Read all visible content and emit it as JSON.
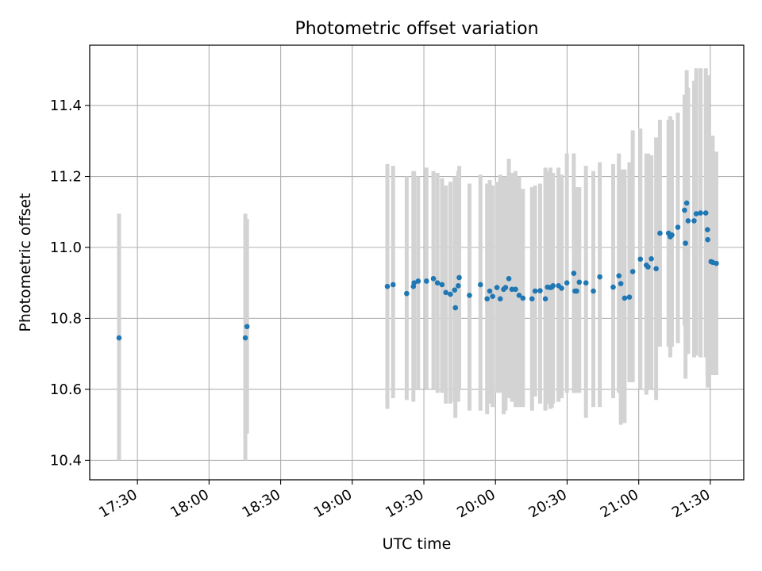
{
  "chart_data": {
    "type": "scatter",
    "title": "Photometric offset variation",
    "xlabel": "UTC time",
    "ylabel": "Photometric offset",
    "xlim": [
      "17:10",
      "21:44"
    ],
    "ylim": [
      10.345,
      11.57
    ],
    "grid": true,
    "x_ticks": [
      "17:30",
      "18:00",
      "18:30",
      "19:00",
      "19:30",
      "20:00",
      "20:30",
      "21:00",
      "21:30"
    ],
    "y_ticks": [
      10.4,
      10.6,
      10.8,
      11.0,
      11.2,
      11.4
    ],
    "y_tick_labels": [
      "10.4",
      "10.6",
      "10.8",
      "11.0",
      "11.2",
      "11.4"
    ],
    "colors": {
      "points": "#1f77b4",
      "error_bars": "#d3d3d3",
      "grid": "#b0b0b0"
    },
    "series": [
      {
        "marker": "point",
        "x": [
          "17:22:18",
          "18:15:12",
          "18:15:54",
          "19:14:42",
          "19:17:06",
          "19:22:48",
          "19:25:36",
          "19:25:54",
          "19:27:36",
          "19:31:06",
          "19:34:00",
          "19:35:42",
          "19:37:36",
          "19:39:12",
          "19:41:06",
          "19:42:54",
          "19:43:12",
          "19:44:24",
          "19:44:48",
          "19:49:06",
          "19:53:42",
          "19:56:30",
          "19:57:36",
          "19:58:48",
          "20:00:36",
          "20:02:00",
          "20:03:24",
          "20:04:12",
          "20:05:36",
          "20:06:54",
          "20:08:24",
          "20:09:54",
          "20:11:30",
          "20:15:18",
          "20:16:36",
          "20:18:42",
          "20:20:54",
          "20:21:48",
          "20:23:00",
          "20:23:36",
          "20:24:06",
          "20:26:24",
          "20:27:42",
          "20:29:54",
          "20:32:48",
          "20:33:18",
          "20:34:00",
          "20:35:06",
          "20:37:54",
          "20:41:00",
          "20:43:42",
          "20:49:18",
          "20:51:42",
          "20:52:30",
          "20:54:06",
          "20:56:06",
          "20:57:30",
          "21:00:42",
          "21:03:12",
          "21:03:54",
          "21:05:18",
          "21:07:18",
          "21:08:54",
          "21:12:30",
          "21:13:12",
          "21:13:54",
          "21:16:24",
          "21:19:12",
          "21:19:36",
          "21:20:06",
          "21:20:42",
          "21:23:12",
          "21:24:06",
          "21:25:54",
          "21:28:06",
          "21:28:48",
          "21:28:54",
          "21:30:18",
          "21:31:00",
          "21:32:30"
        ],
        "y": [
          10.745,
          10.745,
          10.777,
          10.89,
          10.895,
          10.87,
          10.89,
          10.9,
          10.905,
          10.905,
          10.912,
          10.9,
          10.895,
          10.873,
          10.868,
          10.88,
          10.83,
          10.892,
          10.915,
          10.865,
          10.895,
          10.855,
          10.877,
          10.862,
          10.887,
          10.855,
          10.882,
          10.887,
          10.912,
          10.882,
          10.882,
          10.865,
          10.857,
          10.855,
          10.877,
          10.878,
          10.855,
          10.888,
          10.887,
          10.888,
          10.892,
          10.892,
          10.885,
          10.9,
          10.927,
          10.877,
          10.877,
          10.902,
          10.9,
          10.877,
          10.917,
          10.888,
          10.92,
          10.898,
          10.857,
          10.86,
          10.932,
          10.967,
          10.95,
          10.945,
          10.968,
          10.94,
          11.04,
          11.04,
          11.03,
          11.035,
          11.057,
          11.105,
          11.012,
          11.125,
          11.075,
          11.075,
          11.095,
          11.097,
          11.097,
          11.05,
          11.022,
          10.96,
          10.958,
          10.955
        ],
        "y_low": [
          10.4,
          10.4,
          10.475,
          10.545,
          10.575,
          10.57,
          10.565,
          10.6,
          10.6,
          10.6,
          10.6,
          10.59,
          10.59,
          10.56,
          10.56,
          10.565,
          10.52,
          10.565,
          10.6,
          10.54,
          10.54,
          10.53,
          10.56,
          10.55,
          10.59,
          10.59,
          10.53,
          10.54,
          10.575,
          10.565,
          10.55,
          10.55,
          10.55,
          10.54,
          10.58,
          10.56,
          10.54,
          10.56,
          10.545,
          10.548,
          10.56,
          10.565,
          10.575,
          10.59,
          10.59,
          10.59,
          10.59,
          10.59,
          10.52,
          10.55,
          10.55,
          10.575,
          10.59,
          10.5,
          10.505,
          10.62,
          10.62,
          10.6,
          10.585,
          10.6,
          10.6,
          10.57,
          10.72,
          10.72,
          10.69,
          10.72,
          10.73,
          10.78,
          10.63,
          10.75,
          10.7,
          10.69,
          10.695,
          10.69,
          10.69,
          10.635,
          10.605,
          10.64,
          10.64,
          10.64
        ],
        "y_high": [
          11.095,
          11.095,
          11.08,
          11.235,
          11.23,
          11.2,
          11.215,
          11.215,
          11.2,
          11.225,
          11.215,
          11.21,
          11.195,
          11.175,
          11.185,
          11.2,
          11.14,
          11.215,
          11.23,
          11.18,
          11.205,
          11.18,
          11.19,
          11.175,
          11.185,
          11.205,
          11.2,
          11.2,
          11.25,
          11.21,
          11.215,
          11.2,
          11.165,
          11.17,
          11.175,
          11.18,
          11.225,
          11.215,
          11.225,
          11.21,
          11.21,
          11.225,
          11.205,
          11.265,
          11.265,
          11.17,
          11.17,
          11.17,
          11.23,
          11.215,
          11.24,
          11.235,
          11.265,
          11.22,
          11.22,
          11.24,
          11.33,
          11.335,
          11.265,
          11.265,
          11.26,
          11.31,
          11.36,
          11.36,
          11.37,
          11.36,
          11.38,
          11.43,
          11.4,
          11.5,
          11.45,
          11.47,
          11.505,
          11.505,
          11.505,
          11.47,
          11.485,
          11.315,
          11.315,
          11.27
        ]
      }
    ]
  }
}
